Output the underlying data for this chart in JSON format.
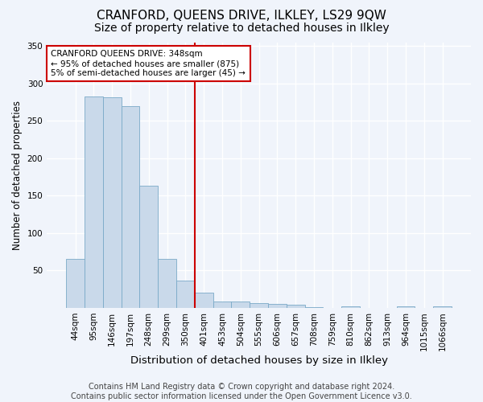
{
  "title": "CRANFORD, QUEENS DRIVE, ILKLEY, LS29 9QW",
  "subtitle": "Size of property relative to detached houses in Ilkley",
  "xlabel": "Distribution of detached houses by size in Ilkley",
  "ylabel": "Number of detached properties",
  "footer1": "Contains HM Land Registry data © Crown copyright and database right 2024.",
  "footer2": "Contains public sector information licensed under the Open Government Licence v3.0.",
  "annotation_line1": "CRANFORD QUEENS DRIVE: 348sqm",
  "annotation_line2": "← 95% of detached houses are smaller (875)",
  "annotation_line3": "5% of semi-detached houses are larger (45) →",
  "bar_color": "#c9d9ea",
  "bar_edge_color": "#7aaac8",
  "vline_color": "#cc0000",
  "annotation_box_edge_color": "#cc0000",
  "background_color": "#f0f4fb",
  "grid_color": "#ffffff",
  "categories": [
    "44sqm",
    "95sqm",
    "146sqm",
    "197sqm",
    "248sqm",
    "299sqm",
    "350sqm",
    "401sqm",
    "453sqm",
    "504sqm",
    "555sqm",
    "606sqm",
    "657sqm",
    "708sqm",
    "759sqm",
    "810sqm",
    "862sqm",
    "913sqm",
    "964sqm",
    "1015sqm",
    "1066sqm"
  ],
  "values": [
    65,
    282,
    281,
    270,
    163,
    65,
    37,
    20,
    9,
    9,
    6,
    5,
    4,
    1,
    0,
    2,
    0,
    0,
    2,
    0,
    2
  ],
  "vline_position": 6.5,
  "ylim": [
    0,
    355
  ],
  "yticks": [
    50,
    100,
    150,
    200,
    250,
    300,
    350
  ],
  "title_fontsize": 11,
  "subtitle_fontsize": 10,
  "xlabel_fontsize": 9.5,
  "ylabel_fontsize": 8.5,
  "tick_fontsize": 7.5,
  "footer_fontsize": 7,
  "annotation_fontsize": 7.5
}
